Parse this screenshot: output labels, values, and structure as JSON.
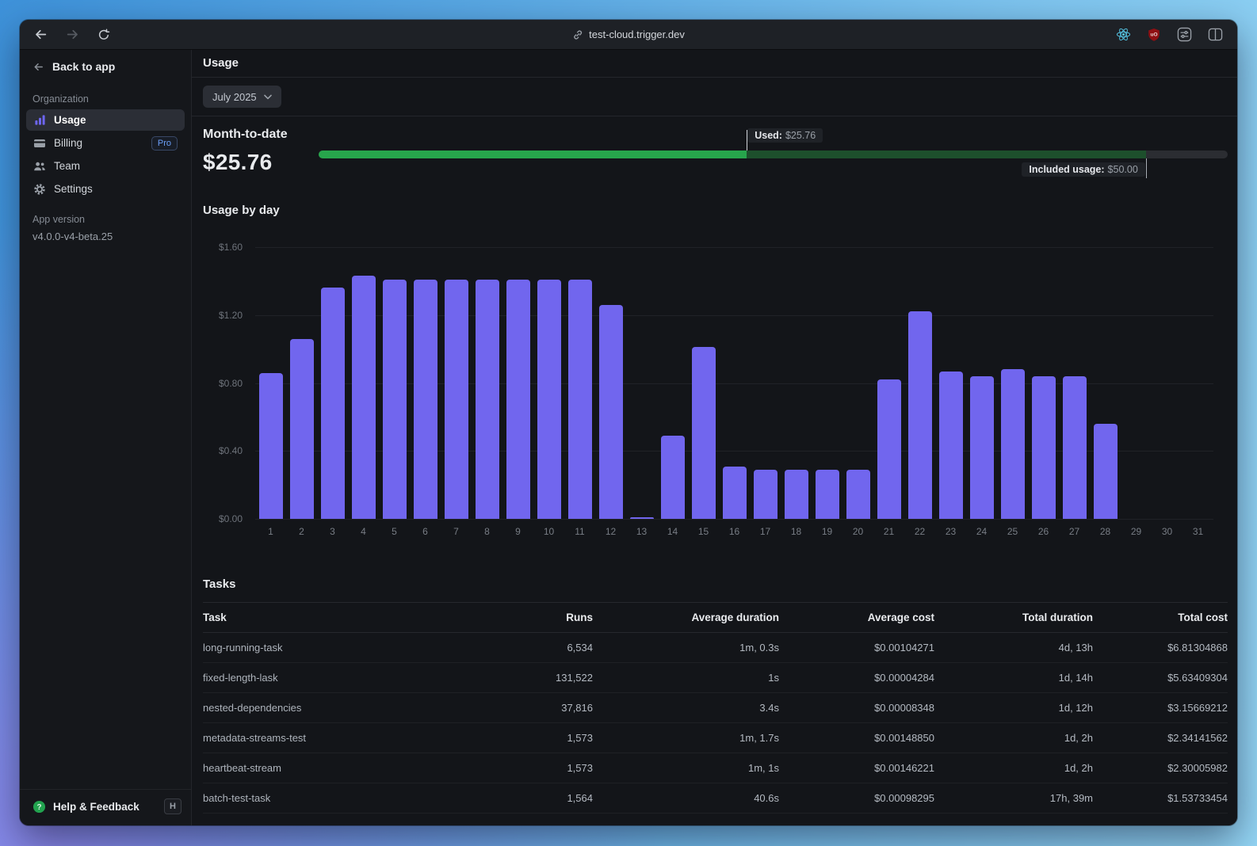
{
  "browser": {
    "url": "test-cloud.trigger.dev",
    "nav": {
      "back": "back",
      "forward": "forward",
      "reload": "reload"
    },
    "extensions": [
      "react-devtools",
      "ublock-origin",
      "tweaks",
      "split-view"
    ],
    "ublock_letters": "uO"
  },
  "sidebar": {
    "back_to_app": "Back to app",
    "section_label": "Organization",
    "items": [
      {
        "label": "Usage",
        "selected": true
      },
      {
        "label": "Billing",
        "badge": "Pro"
      },
      {
        "label": "Team"
      },
      {
        "label": "Settings"
      }
    ],
    "app_version_label": "App version",
    "app_version": "v4.0.0-v4-beta.25",
    "help": {
      "label": "Help & Feedback",
      "shortcut": "H"
    }
  },
  "header": {
    "title": "Usage"
  },
  "filters": {
    "month": "July 2025"
  },
  "month_to_date": {
    "label": "Month-to-date",
    "amount": "$25.76",
    "used_label": "Used:",
    "used_value": "$25.76",
    "included_label": "Included usage:",
    "included_value": "$50.00",
    "used_pct": 47.1,
    "included_pct": 91.0
  },
  "chart_data": {
    "type": "bar",
    "title": "Usage by day",
    "categories": [
      1,
      2,
      3,
      4,
      5,
      6,
      7,
      8,
      9,
      10,
      11,
      12,
      13,
      14,
      15,
      16,
      17,
      18,
      19,
      20,
      21,
      22,
      23,
      24,
      25,
      26,
      27,
      28,
      29,
      30,
      31
    ],
    "values": [
      0.86,
      1.06,
      1.36,
      1.43,
      1.41,
      1.41,
      1.41,
      1.41,
      1.41,
      1.41,
      1.41,
      1.26,
      0.01,
      0.49,
      1.01,
      0.31,
      0.29,
      0.29,
      0.29,
      0.29,
      0.82,
      1.22,
      0.87,
      0.84,
      0.88,
      0.84,
      0.84,
      0.56,
      0,
      0,
      0
    ],
    "xlabel": "",
    "ylabel": "",
    "y_ticks": [
      "$1.60",
      "$1.20",
      "$0.80",
      "$0.40",
      "$0.00"
    ],
    "ylim": [
      0,
      1.6
    ],
    "grid": true,
    "legend": "none",
    "bar_color": "#7166ee"
  },
  "tasks": {
    "heading": "Tasks",
    "columns": [
      "Task",
      "Runs",
      "Average duration",
      "Average cost",
      "Total duration",
      "Total cost"
    ],
    "rows": [
      [
        "long-running-task",
        "6,534",
        "1m, 0.3s",
        "$0.00104271",
        "4d, 13h",
        "$6.81304868"
      ],
      [
        "fixed-length-lask",
        "131,522",
        "1s",
        "$0.00004284",
        "1d, 14h",
        "$5.63409304"
      ],
      [
        "nested-dependencies",
        "37,816",
        "3.4s",
        "$0.00008348",
        "1d, 12h",
        "$3.15669212"
      ],
      [
        "metadata-streams-test",
        "1,573",
        "1m, 1.7s",
        "$0.00148850",
        "1d, 2h",
        "$2.34141562"
      ],
      [
        "heartbeat-stream",
        "1,573",
        "1m, 1s",
        "$0.00146221",
        "1d, 2h",
        "$2.30005982"
      ],
      [
        "batch-test-task",
        "1,564",
        "40.6s",
        "$0.00098295",
        "17h, 39m",
        "$1.53733454"
      ]
    ]
  },
  "colors": {
    "accent_purple": "#7166ee",
    "used_green": "#27a54c",
    "included_green": "#1d4f2c",
    "track_gray": "#2b2d32",
    "pro_blue": "#6b9ff8",
    "help_green": "#22a34f"
  }
}
